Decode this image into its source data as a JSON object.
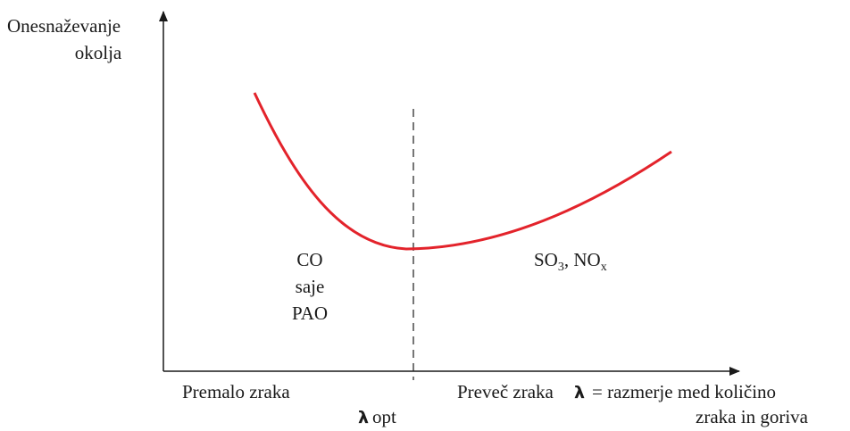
{
  "y_axis_label": [
    "Onesnaževanje",
    "okolja"
  ],
  "left_region": [
    "CO",
    "saje",
    "PAO"
  ],
  "right_region": [
    "SO",
    "3",
    ", NO",
    "x"
  ],
  "x_left": "Premalo zraka",
  "x_right": "Preveč zraka",
  "x_axis_label": {
    "symbol": "λ",
    "text": [
      "= razmerje med količino",
      "zraka in goriva"
    ]
  },
  "optimum": {
    "symbol": "λ",
    "text": "opt"
  }
}
